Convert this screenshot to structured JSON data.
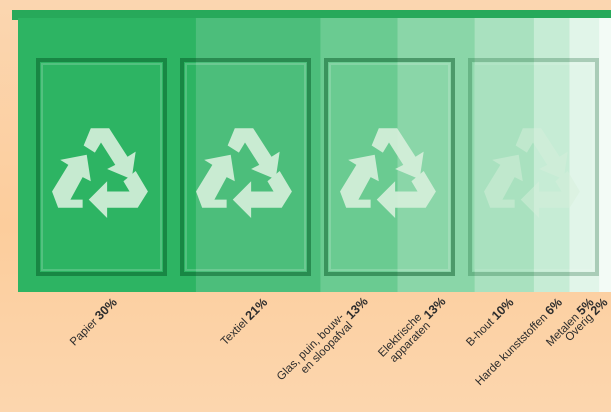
{
  "chart_data": {
    "type": "bar",
    "orientation": "stacked-horizontal-100%",
    "title": "",
    "categories": [
      "Papier",
      "Textiel",
      "Glas, puin, bouw- en sloopafval",
      "Elektrische apparaten",
      "B-hout",
      "Harde kunststoffen",
      "Metalen",
      "Overig"
    ],
    "label_lines": [
      [
        "Papier"
      ],
      [
        "Textiel"
      ],
      [
        "Glas, puin, bouw-",
        "en sloopafval"
      ],
      [
        "Elektrische",
        "apparaten"
      ],
      [
        "B-hout"
      ],
      [
        "Harde kunststoffen"
      ],
      [
        "Metalen"
      ],
      [
        "Overig"
      ]
    ],
    "values": [
      30,
      21,
      13,
      13,
      10,
      6,
      5,
      2
    ],
    "value_labels": [
      "30%",
      "21%",
      "13%",
      "13%",
      "10%",
      "6%",
      "5%",
      "2%"
    ],
    "segment_colors": [
      "#2db463",
      "#4cbe7b",
      "#6acb91",
      "#8ad6a8",
      "#a9e1bf",
      "#c6ecd5",
      "#e1f5e9",
      "#f3fbf6"
    ],
    "accent": "#27a95a",
    "icon": "recycle-icon"
  }
}
